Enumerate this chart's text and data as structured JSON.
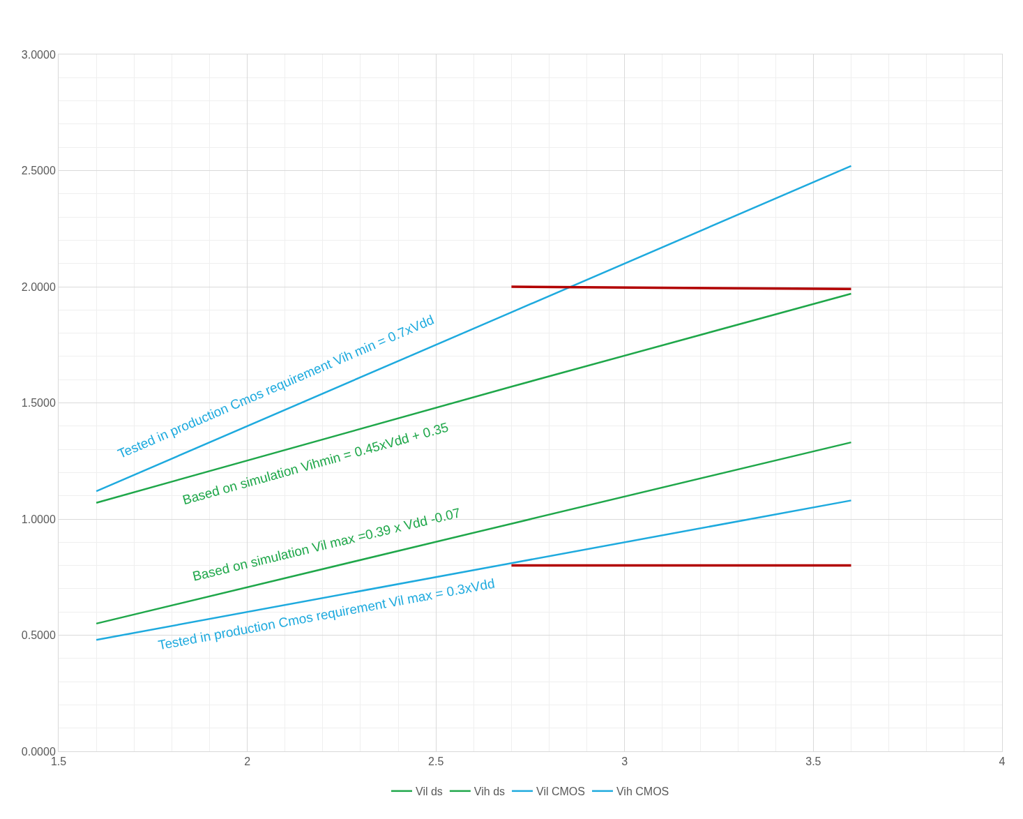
{
  "chart_data": {
    "type": "line",
    "x": [
      1.6,
      2.7,
      3.6
    ],
    "series": [
      {
        "name": "Vil ds",
        "color": "#1fa74a",
        "values": [
          0.55,
          0.98,
          1.33
        ]
      },
      {
        "name": "Vih ds",
        "color": "#1fa74a",
        "values": [
          1.07,
          1.57,
          1.97
        ]
      },
      {
        "name": "Vil CMOS",
        "color": "#1eaade",
        "values": [
          0.48,
          0.81,
          1.08
        ]
      },
      {
        "name": "Vih CMOS",
        "color": "#1eaade",
        "values": [
          1.12,
          1.89,
          2.52
        ]
      },
      {
        "color": "#b20000",
        "values": [
          null,
          2.0,
          1.99
        ]
      },
      {
        "color": "#b20000",
        "values": [
          null,
          0.8,
          0.8
        ]
      }
    ],
    "annotations": [
      "Tested in production Cmos requirement Vih min = 0.7xVdd",
      "Based on simulation Vihmin = 0.45xVdd + 0.35",
      "Based on simulation Vil max =0.39 x Vdd -0.07",
      "Tested in production Cmos requirement Vil max = 0.3xVdd"
    ],
    "xlim": [
      1.5,
      4
    ],
    "xticks": [
      1.5,
      2,
      2.5,
      3,
      3.5,
      4
    ],
    "ylim": [
      0,
      3
    ],
    "yticks": [
      {
        "value": 0,
        "label": "0.0000"
      },
      {
        "value": 0.5,
        "label": "0.5000"
      },
      {
        "value": 1,
        "label": "1.0000"
      },
      {
        "value": 1.5,
        "label": "1.5000"
      },
      {
        "value": 2,
        "label": "2.0000"
      },
      {
        "value": 2.5,
        "label": "2.5000"
      },
      {
        "value": 3,
        "label": "3.0000"
      }
    ],
    "grid": true,
    "legend": "bottom",
    "marker": "none",
    "line_style": "solid"
  }
}
